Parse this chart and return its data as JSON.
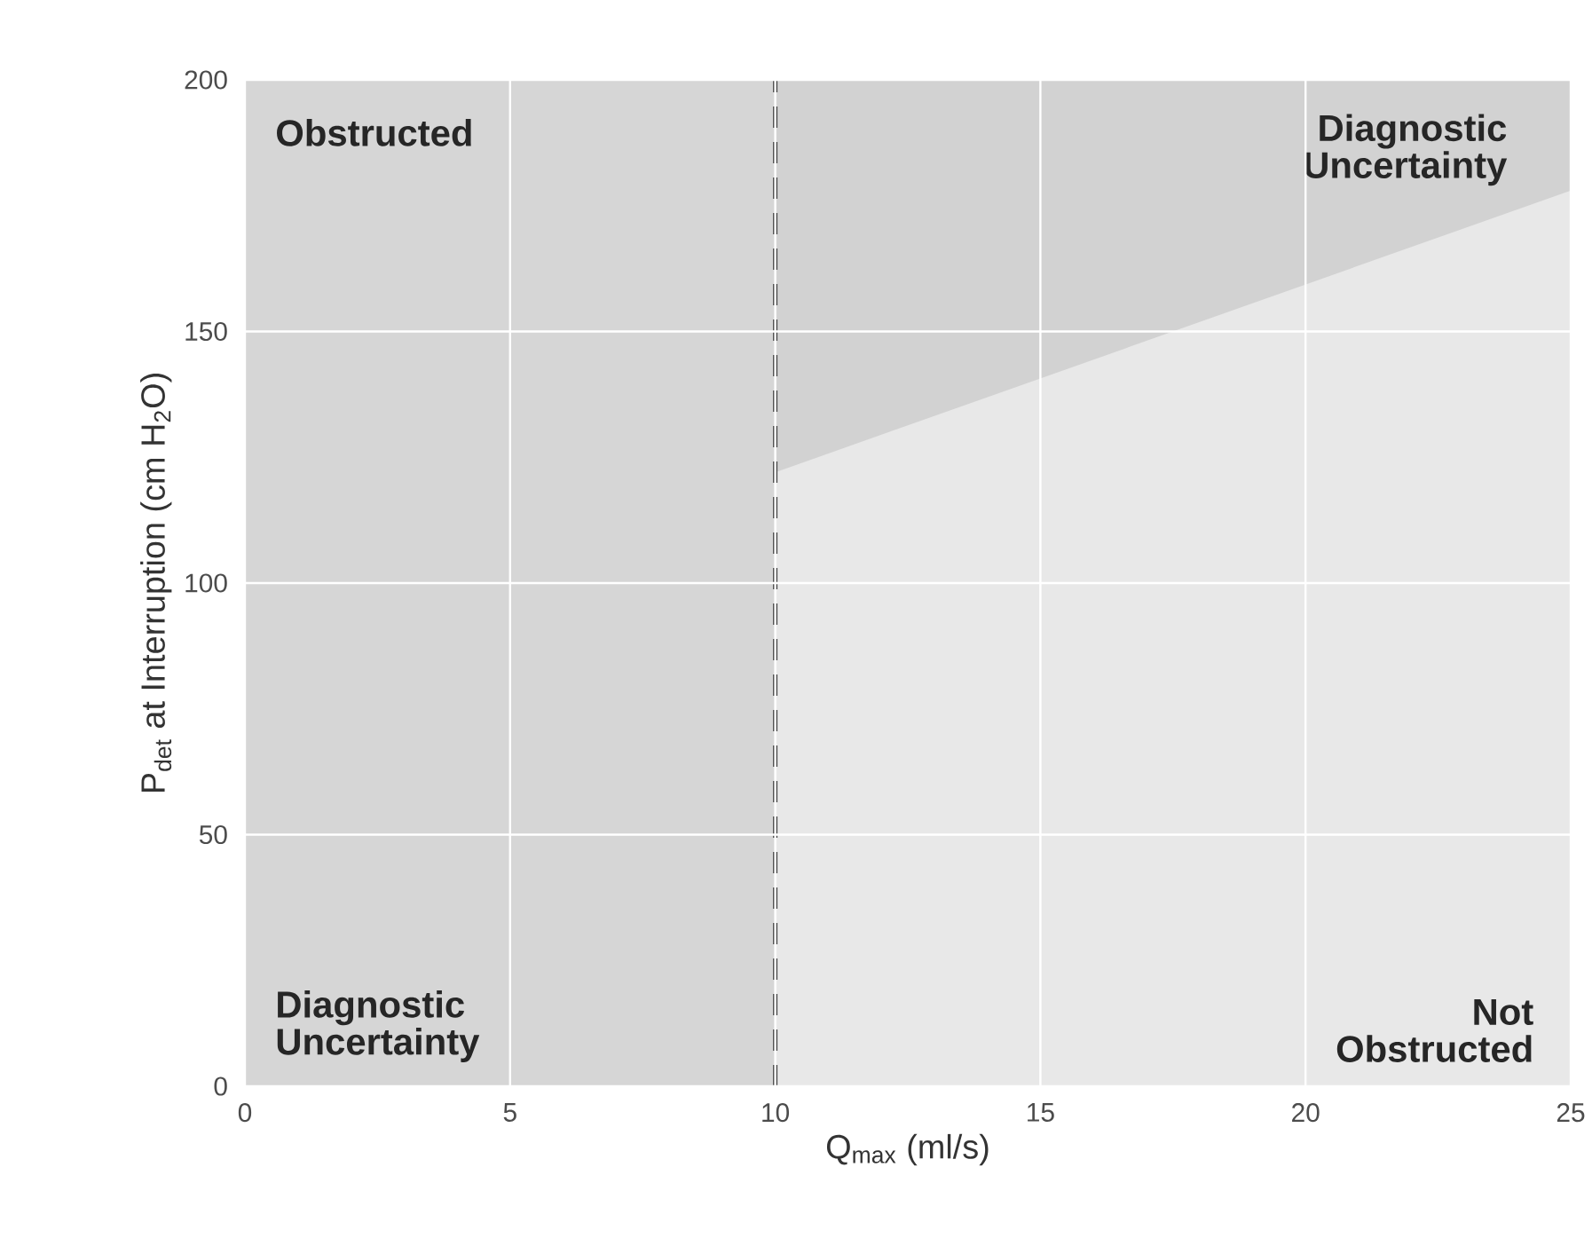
{
  "chart_data": {
    "type": "area",
    "xlabel": "Q$_{max}$ (ml/s)",
    "ylabel": "P$_{det}$ at Interruption (cm H$_{2}$O)",
    "xlim": [
      0,
      25
    ],
    "ylim": [
      0,
      200
    ],
    "xticks": [
      0,
      5,
      10,
      15,
      20,
      25
    ],
    "yticks": [
      0,
      50,
      100,
      150,
      200
    ],
    "grid": true,
    "series": [
      {
        "x": [
          0,
          10
        ],
        "values": [
          200,
          200
        ],
        "color": "#d6d6d6"
      },
      {
        "x": [
          10,
          25
        ],
        "values": [
          200,
          200
        ],
        "color": "#d2d2d2"
      },
      {
        "x": [
          10,
          25
        ],
        "values": [
          122,
          178
        ],
        "color": "#e8e8e8"
      }
    ],
    "ref_lines": [
      {
        "axis": "x",
        "value": 10,
        "color": "#444444",
        "line_style": "dashed"
      }
    ],
    "annotations": [
      "Obstructed",
      "Diagnostic Uncertainty",
      "Diagnostic Uncertainty",
      "Not Obstructed"
    ]
  }
}
